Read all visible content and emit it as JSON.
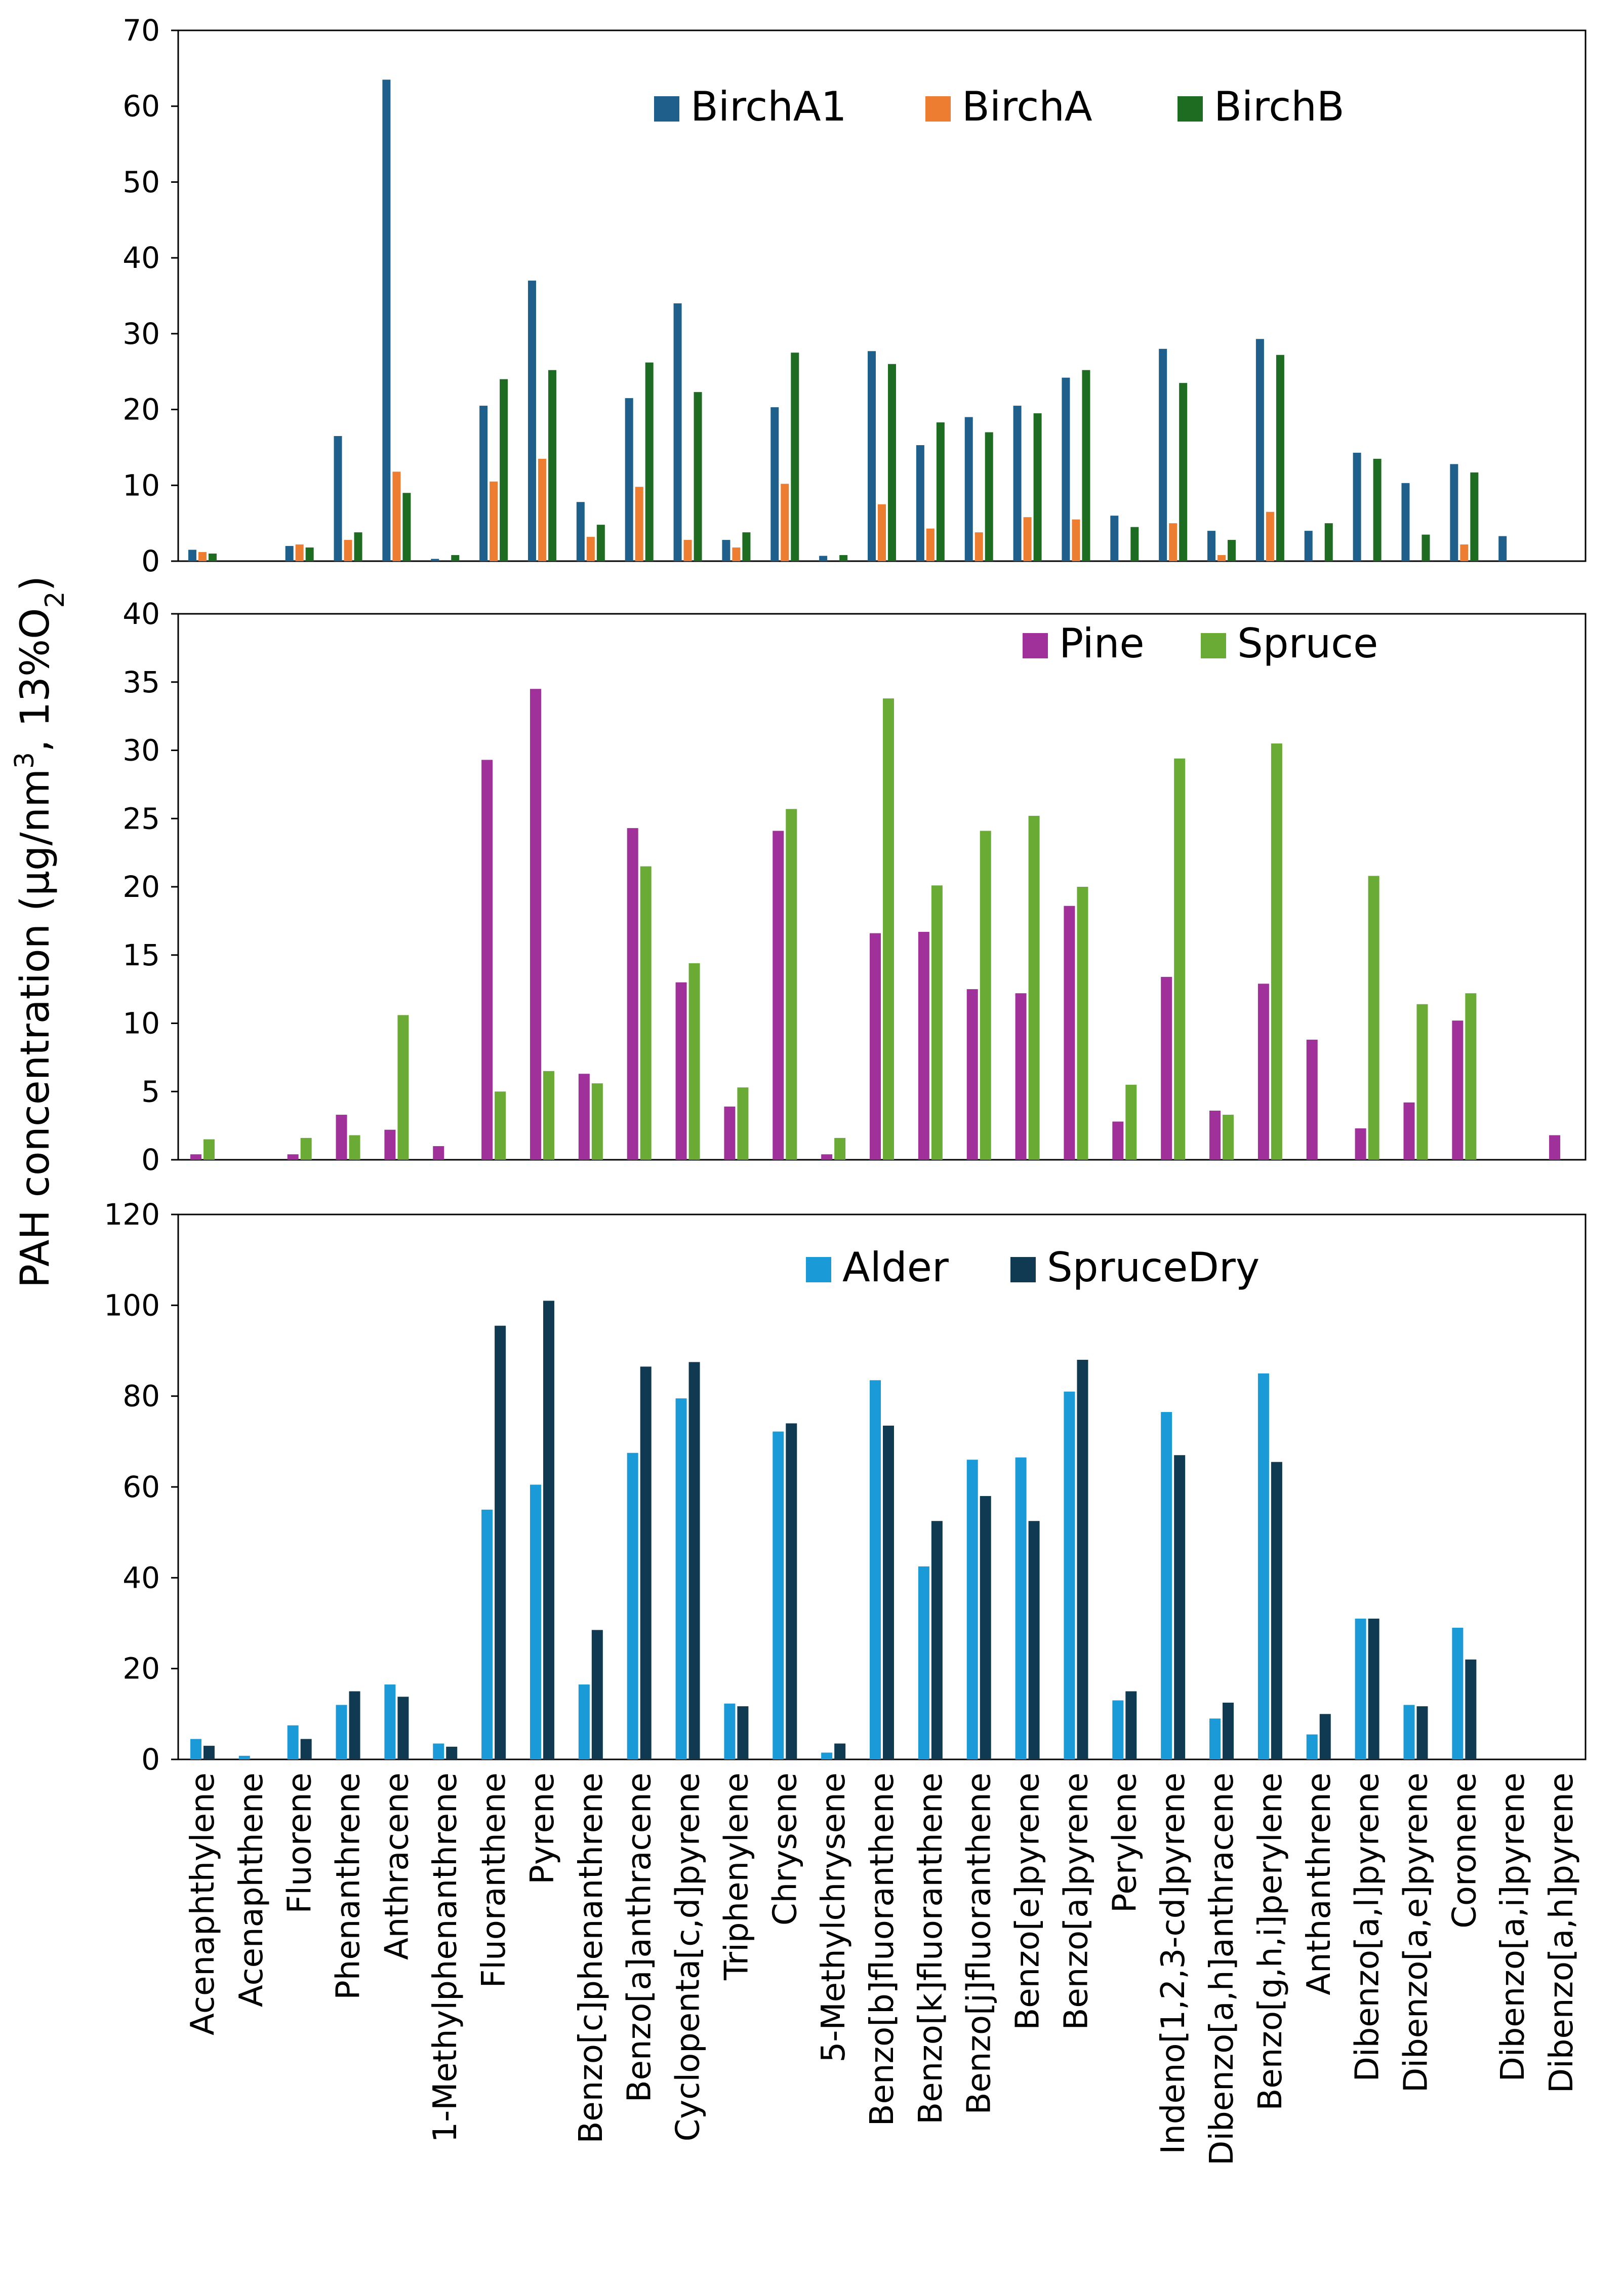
{
  "shared": {
    "ylabel_main": "PAH concentration (μg/nm",
    "ylabel_sup": "3",
    "ylabel_mid": ", 13%O",
    "ylabel_sub": "2",
    "ylabel_end": ")"
  },
  "chart_data": [
    {
      "type": "bar",
      "title": "",
      "xlabel": "",
      "ylabel": "PAH concentration (μg/nm3, 13%O2)",
      "ylim": [
        0,
        70
      ],
      "yticks": [
        "0",
        "10",
        "20",
        "30",
        "40",
        "50",
        "60",
        "70"
      ],
      "legend_position": "top-right",
      "categories": [
        "Acenaphthylene",
        "Acenaphthene",
        "Fluorene",
        "Phenanthrene",
        "Anthracene",
        "1-Methylphenanthrene",
        "Fluoranthene",
        "Pyrene",
        "Benzo[c]phenanthrene",
        "Benzo[a]anthracene",
        "Cyclopenta[c,d]pyrene",
        "Triphenylene",
        "Chrysene",
        "5-Methylchrysene",
        "Benzo[b]fluoranthene",
        "Benzo[k]fluoranthene",
        "Benzo[j]fluoranthene",
        "Benzo[e]pyrene",
        "Benzo[a]pyrene",
        "Perylene",
        "Indeno[1,2,3-cd]pyrene",
        "Dibenzo[a,h]anthracene",
        "Benzo[g,h,i]perylene",
        "Anthanthrene",
        "Dibenzo[a,l]pyrene",
        "Dibenzo[a,e]pyrene",
        "Coronene",
        "Dibenzo[a,i]pyrene",
        "Dibenzo[a,h]pyrene"
      ],
      "series": [
        {
          "name": "BirchA1",
          "color": "#1f5f8b",
          "values": [
            1.5,
            0,
            2.0,
            16.5,
            63.5,
            0.3,
            20.5,
            37.0,
            7.8,
            21.5,
            34.0,
            2.8,
            20.3,
            0.7,
            27.7,
            15.3,
            19.0,
            20.5,
            24.2,
            6.0,
            28.0,
            4.0,
            29.3,
            4.0,
            14.3,
            10.3,
            12.8,
            3.3,
            0
          ]
        },
        {
          "name": "BirchA",
          "color": "#ed7d31",
          "values": [
            1.2,
            0,
            2.2,
            2.8,
            11.8,
            0,
            10.5,
            13.5,
            3.2,
            9.8,
            2.8,
            1.8,
            10.2,
            0,
            7.5,
            4.3,
            3.8,
            5.8,
            5.5,
            0,
            5.0,
            0.8,
            6.5,
            0,
            0,
            0,
            2.2,
            0,
            0
          ]
        },
        {
          "name": "BirchB",
          "color": "#1e6b22",
          "values": [
            1.0,
            0,
            1.8,
            3.8,
            9.0,
            0.8,
            24.0,
            25.2,
            4.8,
            26.2,
            22.3,
            3.8,
            27.5,
            0.8,
            26.0,
            18.3,
            17.0,
            19.5,
            25.2,
            4.5,
            23.5,
            2.8,
            27.2,
            5.0,
            13.5,
            3.5,
            11.7,
            0,
            0
          ]
        }
      ]
    },
    {
      "type": "bar",
      "title": "",
      "xlabel": "",
      "ylabel": "PAH concentration (μg/nm3, 13%O2)",
      "ylim": [
        0,
        40
      ],
      "yticks": [
        "0",
        "5",
        "10",
        "15",
        "20",
        "25",
        "30",
        "35",
        "40"
      ],
      "legend_position": "top-right",
      "categories": [
        "Acenaphthylene",
        "Acenaphthene",
        "Fluorene",
        "Phenanthrene",
        "Anthracene",
        "1-Methylphenanthrene",
        "Fluoranthene",
        "Pyrene",
        "Benzo[c]phenanthrene",
        "Benzo[a]anthracene",
        "Cyclopenta[c,d]pyrene",
        "Triphenylene",
        "Chrysene",
        "5-Methylchrysene",
        "Benzo[b]fluoranthene",
        "Benzo[k]fluoranthene",
        "Benzo[j]fluoranthene",
        "Benzo[e]pyrene",
        "Benzo[a]pyrene",
        "Perylene",
        "Indeno[1,2,3-cd]pyrene",
        "Dibenzo[a,h]anthracene",
        "Benzo[g,h,i]perylene",
        "Anthanthrene",
        "Dibenzo[a,l]pyrene",
        "Dibenzo[a,e]pyrene",
        "Coronene",
        "Dibenzo[a,i]pyrene",
        "Dibenzo[a,h]pyrene"
      ],
      "series": [
        {
          "name": "Pine",
          "color": "#a0309a",
          "values": [
            0.4,
            0,
            0.4,
            3.3,
            2.2,
            1.0,
            29.3,
            34.5,
            6.3,
            24.3,
            13.0,
            3.9,
            24.1,
            0.4,
            16.6,
            16.7,
            12.5,
            12.2,
            18.6,
            2.8,
            13.4,
            3.6,
            12.9,
            8.8,
            2.3,
            4.2,
            10.2,
            0,
            1.8
          ]
        },
        {
          "name": "Spruce",
          "color": "#6aab35",
          "values": [
            1.5,
            0,
            1.6,
            1.8,
            10.6,
            0,
            5.0,
            6.5,
            5.6,
            21.5,
            14.4,
            5.3,
            25.7,
            1.6,
            33.8,
            20.1,
            24.1,
            25.2,
            20.0,
            5.5,
            29.4,
            3.3,
            30.5,
            0,
            20.8,
            11.4,
            12.2,
            0,
            0
          ]
        }
      ]
    },
    {
      "type": "bar",
      "title": "",
      "xlabel": "",
      "ylabel": "PAH concentration (μg/nm3, 13%O2)",
      "ylim": [
        0,
        120
      ],
      "yticks": [
        "0",
        "20",
        "40",
        "60",
        "80",
        "100",
        "120"
      ],
      "legend_position": "top-right",
      "categories": [
        "Acenaphthylene",
        "Acenaphthene",
        "Fluorene",
        "Phenanthrene",
        "Anthracene",
        "1-Methylphenanthrene",
        "Fluoranthene",
        "Pyrene",
        "Benzo[c]phenanthrene",
        "Benzo[a]anthracene",
        "Cyclopenta[c,d]pyrene",
        "Triphenylene",
        "Chrysene",
        "5-Methylchrysene",
        "Benzo[b]fluoranthene",
        "Benzo[k]fluoranthene",
        "Benzo[j]fluoranthene",
        "Benzo[e]pyrene",
        "Benzo[a]pyrene",
        "Perylene",
        "Indeno[1,2,3-cd]pyrene",
        "Dibenzo[a,h]anthracene",
        "Benzo[g,h,i]perylene",
        "Anthanthrene",
        "Dibenzo[a,l]pyrene",
        "Dibenzo[a,e]pyrene",
        "Coronene",
        "Dibenzo[a,i]pyrene",
        "Dibenzo[a,h]pyrene"
      ],
      "series": [
        {
          "name": "Alder",
          "color": "#1a9bd7",
          "values": [
            4.5,
            0.8,
            7.5,
            12.0,
            16.5,
            3.5,
            55.0,
            60.5,
            16.5,
            67.5,
            79.5,
            12.3,
            72.2,
            1.5,
            83.5,
            42.5,
            66.0,
            66.5,
            81.0,
            13.0,
            76.5,
            9.0,
            85.0,
            5.5,
            31.0,
            12.0,
            29.0,
            0,
            0
          ]
        },
        {
          "name": "SpruceDry",
          "color": "#0f3a52",
          "values": [
            3.0,
            0,
            4.5,
            15.0,
            13.8,
            2.8,
            95.5,
            101.0,
            28.5,
            86.5,
            87.5,
            11.7,
            74.0,
            3.5,
            73.5,
            52.5,
            58.0,
            52.5,
            88.0,
            15.0,
            67.0,
            12.5,
            65.5,
            10.0,
            31.0,
            11.7,
            22.0,
            0,
            0
          ]
        }
      ]
    }
  ]
}
